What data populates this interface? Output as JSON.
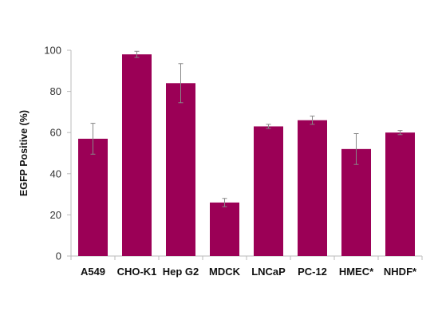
{
  "chart_data": {
    "type": "bar",
    "title": "",
    "xlabel": "",
    "ylabel": "EGFP Positive (%)",
    "ylim": [
      0,
      100
    ],
    "yticks": [
      0,
      20,
      40,
      60,
      80,
      100
    ],
    "grid": false,
    "categories": [
      "A549",
      "CHO-K1",
      "Hep G2",
      "MDCK",
      "LNCaP",
      "PC-12",
      "HMEC*",
      "NHDF*"
    ],
    "values": [
      57,
      98,
      84,
      26,
      63,
      66,
      52,
      60
    ],
    "errors": [
      7.5,
      1.5,
      9.5,
      2.0,
      1.0,
      2.0,
      7.5,
      1.0
    ],
    "bar_color": "#9b0056",
    "axis_color": "#bbbbbb",
    "error_color": "#888888"
  }
}
